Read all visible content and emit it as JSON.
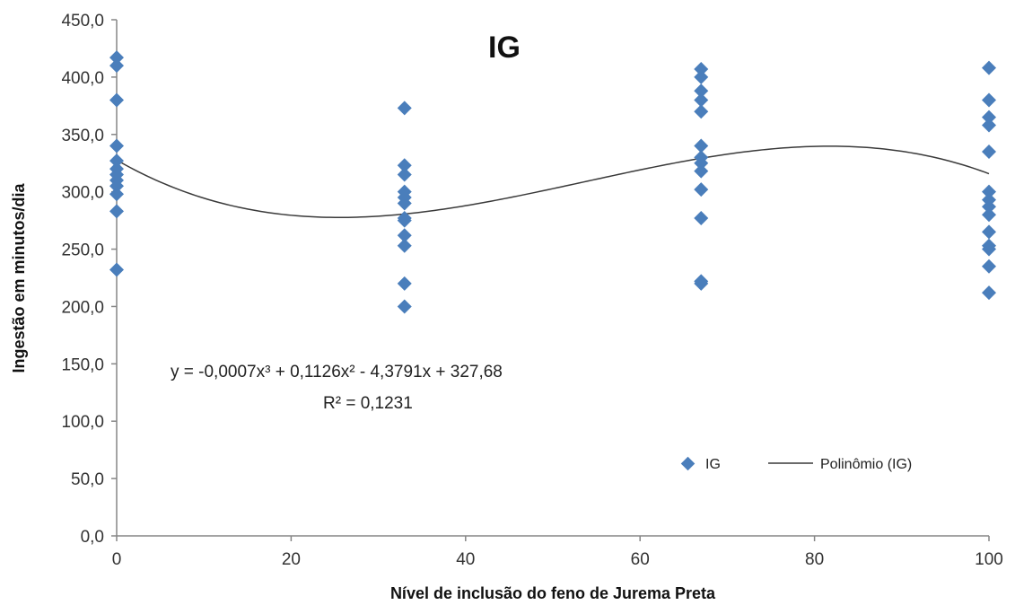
{
  "chart_data": {
    "type": "scatter",
    "title": "IG",
    "xlabel": "Nível de inclusão do feno de Jurema Preta",
    "ylabel": "Ingestão em minutos/dia",
    "xlim": [
      0,
      100
    ],
    "ylim": [
      0,
      450
    ],
    "x_ticks": [
      "0",
      "20",
      "40",
      "60",
      "80",
      "100"
    ],
    "y_ticks": [
      "0,0",
      "50,0",
      "100,0",
      "150,0",
      "200,0",
      "250,0",
      "300,0",
      "350,0",
      "400,0",
      "450,0"
    ],
    "grid": false,
    "legend_position": "bottom-right",
    "series": [
      {
        "name": "IG",
        "marker": "diamond",
        "color": "#4a7ebb",
        "points": [
          [
            0,
            417
          ],
          [
            0,
            410
          ],
          [
            0,
            380
          ],
          [
            0,
            340
          ],
          [
            0,
            327
          ],
          [
            0,
            320
          ],
          [
            0,
            315
          ],
          [
            0,
            310
          ],
          [
            0,
            305
          ],
          [
            0,
            298
          ],
          [
            0,
            283
          ],
          [
            0,
            232
          ],
          [
            33,
            373
          ],
          [
            33,
            323
          ],
          [
            33,
            315
          ],
          [
            33,
            300
          ],
          [
            33,
            295
          ],
          [
            33,
            290
          ],
          [
            33,
            277
          ],
          [
            33,
            275
          ],
          [
            33,
            262
          ],
          [
            33,
            253
          ],
          [
            33,
            220
          ],
          [
            33,
            200
          ],
          [
            67,
            407
          ],
          [
            67,
            400
          ],
          [
            67,
            388
          ],
          [
            67,
            380
          ],
          [
            67,
            370
          ],
          [
            67,
            340
          ],
          [
            67,
            330
          ],
          [
            67,
            325
          ],
          [
            67,
            318
          ],
          [
            67,
            302
          ],
          [
            67,
            277
          ],
          [
            67,
            222
          ],
          [
            67,
            220
          ],
          [
            100,
            408
          ],
          [
            100,
            380
          ],
          [
            100,
            365
          ],
          [
            100,
            358
          ],
          [
            100,
            335
          ],
          [
            100,
            300
          ],
          [
            100,
            293
          ],
          [
            100,
            287
          ],
          [
            100,
            280
          ],
          [
            100,
            265
          ],
          [
            100,
            253
          ],
          [
            100,
            250
          ],
          [
            100,
            235
          ],
          [
            100,
            212
          ]
        ]
      },
      {
        "name": "Polinômio (IG)",
        "type": "line",
        "color": "#333333",
        "polynomial_coefficients": [
          327.68,
          -4.3791,
          0.1126,
          -0.0007
        ]
      }
    ],
    "annotations": {
      "equation": "y = -0,0007x³ + 0,1126x² - 4,3791x + 327,68",
      "r_squared": "R² = 0,1231"
    }
  }
}
